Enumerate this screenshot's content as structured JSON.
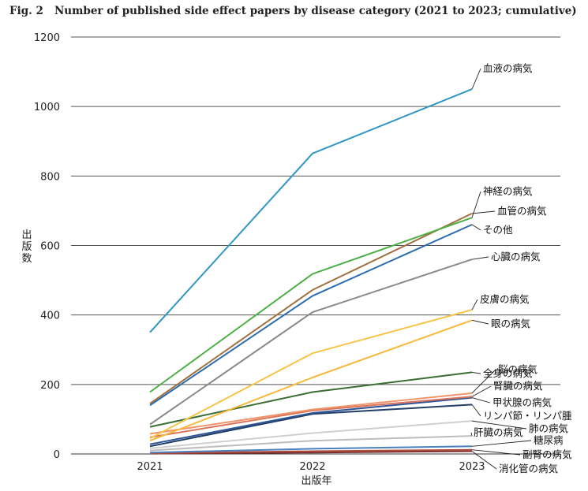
{
  "figure": {
    "label": "Fig. 2",
    "title": "Number of published side effect papers by disease category (2021 to 2023; cumulative)"
  },
  "chart_data": {
    "type": "line",
    "title": "Number of published side effect papers by disease category (2021 to 2023; cumulative)",
    "xlabel": "出版年",
    "ylabel": "出版数",
    "x": [
      "2021",
      "2022",
      "2023"
    ],
    "ylim": [
      0,
      1200
    ],
    "yticks": [
      0,
      200,
      400,
      600,
      800,
      1000,
      1200
    ],
    "grid": true,
    "series": [
      {
        "name": "血液の病気",
        "values": [
          350,
          865,
          1050
        ],
        "color": "#2e96c4"
      },
      {
        "name": "神経の病気",
        "values": [
          178,
          518,
          680
        ],
        "color": "#4daf46"
      },
      {
        "name": "血管の病気",
        "values": [
          145,
          472,
          692
        ],
        "color": "#a0703f"
      },
      {
        "name": "その他",
        "values": [
          140,
          455,
          660
        ],
        "color": "#2b6cb0"
      },
      {
        "name": "心臓の病気",
        "values": [
          85,
          408,
          560
        ],
        "color": "#8a8a8a"
      },
      {
        "name": "皮膚の病気",
        "values": [
          45,
          290,
          415
        ],
        "color": "#f7c447"
      },
      {
        "name": "眼の病気",
        "values": [
          38,
          220,
          385
        ],
        "color": "#f6b93b"
      },
      {
        "name": "全身の病気",
        "values": [
          78,
          178,
          235
        ],
        "color": "#3a6e32"
      },
      {
        "name": "脳の病気",
        "values": [
          58,
          128,
          175
        ],
        "color": "#f0956b"
      },
      {
        "name": "腎臓の病気",
        "values": [
          48,
          125,
          165
        ],
        "color": "#d9735a"
      },
      {
        "name": "甲状腺の病気",
        "values": [
          28,
          118,
          162
        ],
        "color": "#2f5597"
      },
      {
        "name": "リンパ節・リンパ腫",
        "values": [
          22,
          115,
          142
        ],
        "color": "#1f3d66"
      },
      {
        "name": "肺の病気",
        "values": [
          16,
          60,
          95
        ],
        "color": "#cfcfcf"
      },
      {
        "name": "肝臓の病気",
        "values": [
          10,
          38,
          52
        ],
        "color": "#bdbdbd"
      },
      {
        "name": "糖尿病",
        "values": [
          4,
          15,
          22
        ],
        "color": "#4a82c0"
      },
      {
        "name": "副腎の病気",
        "values": [
          2,
          8,
          12
        ],
        "color": "#b04a3a"
      },
      {
        "name": "消化管の病気",
        "values": [
          1,
          4,
          8
        ],
        "color": "#7a2e2e"
      }
    ]
  }
}
